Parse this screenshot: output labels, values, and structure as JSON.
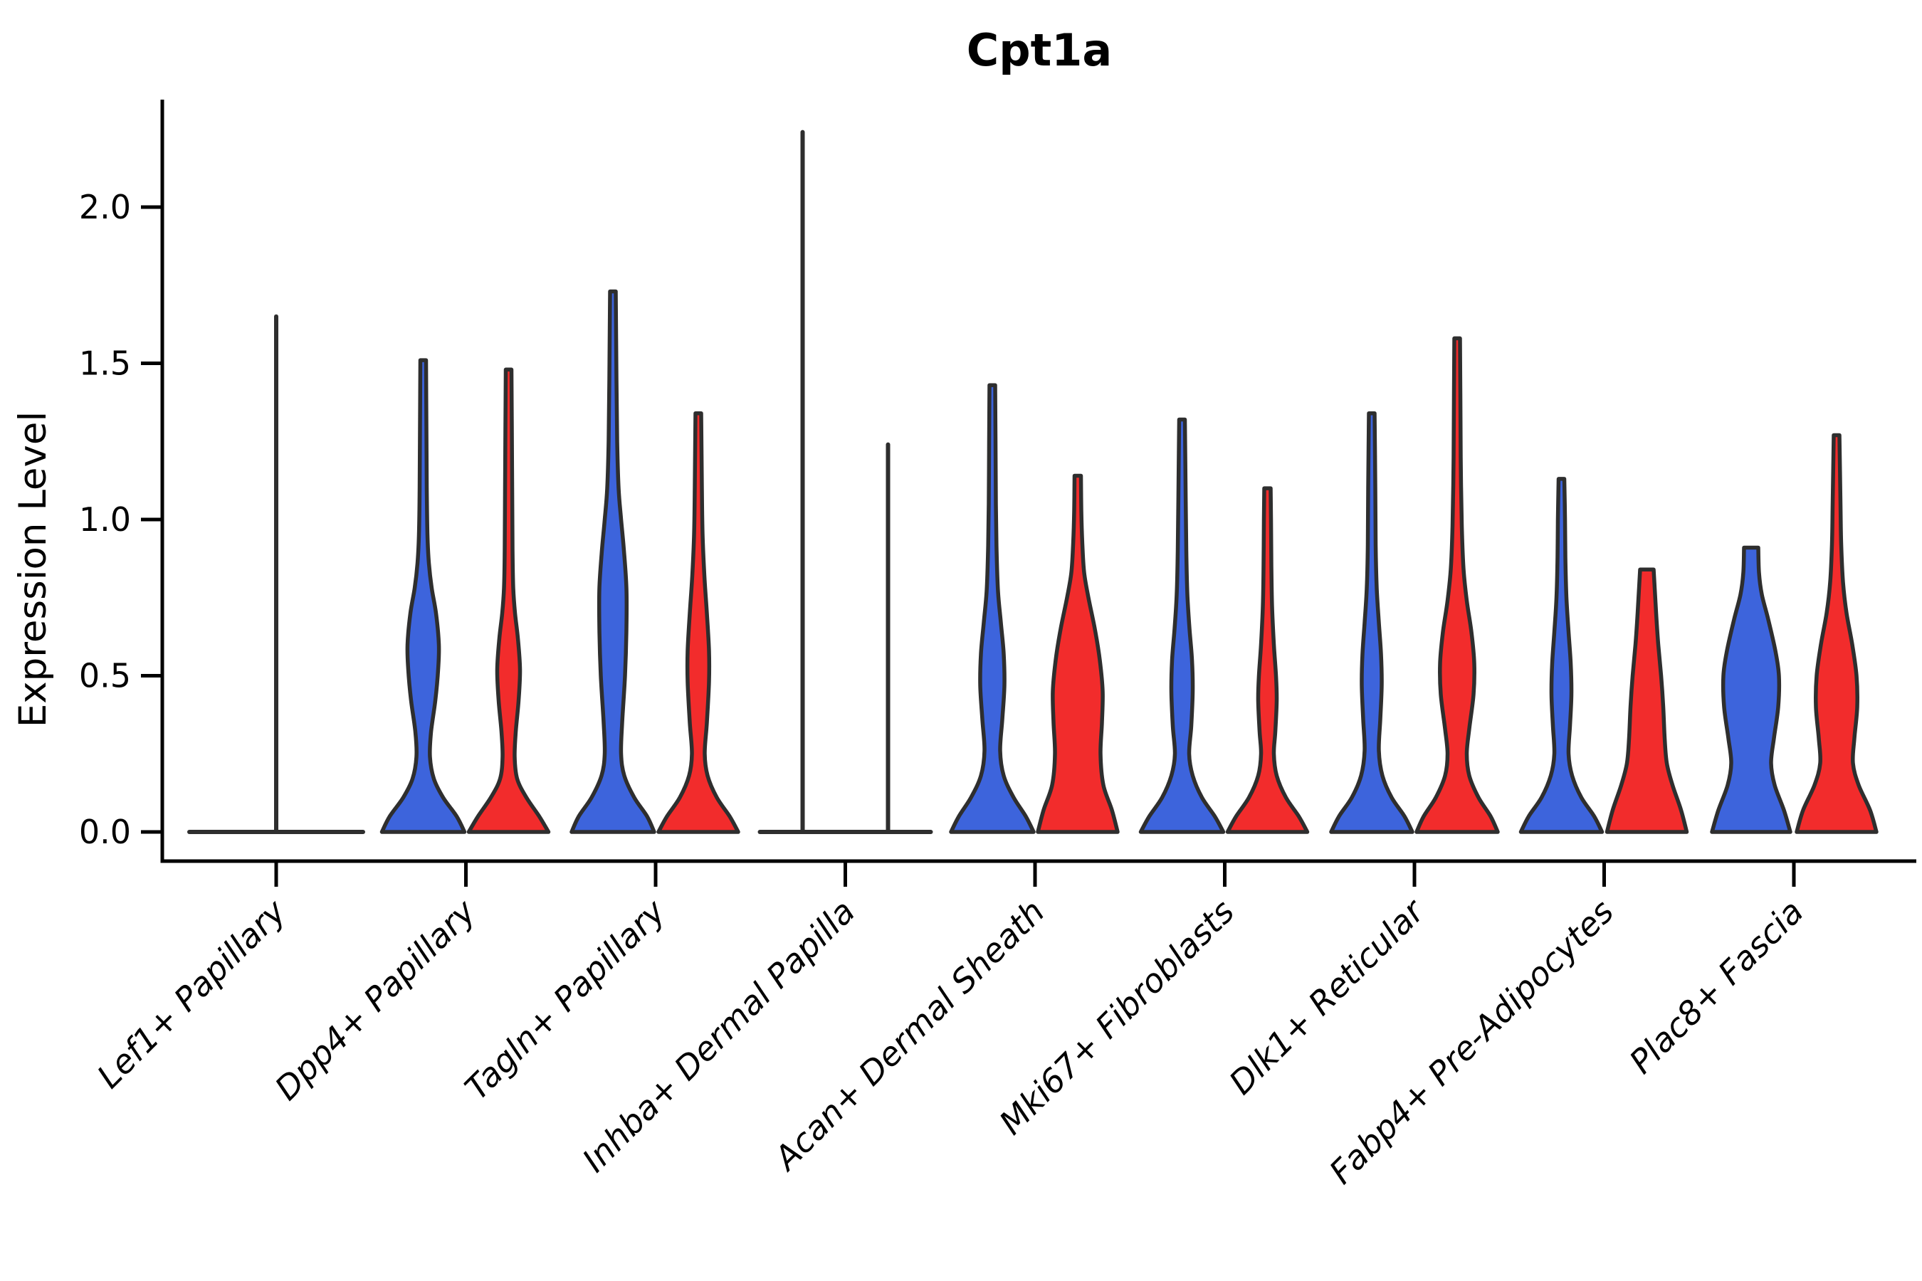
{
  "title": "Cpt1a",
  "y_axis": {
    "label": "Expression Level",
    "tick_labels": [
      "0.0",
      "0.5",
      "1.0",
      "1.5",
      "2.0"
    ],
    "tick_values": [
      0.0,
      0.5,
      1.0,
      1.5,
      2.0
    ]
  },
  "x_axis": {
    "categories": [
      "Lef1+ Papillary",
      "Dpp4+ Papillary",
      "Tagln+ Papillary",
      "Inhba+ Dermal Papilla",
      "Acan+ Dermal Sheath",
      "Mki67+ Fibroblasts",
      "Dlk1+ Reticular",
      "Fabp4+ Pre-Adipocytes",
      "Plac8+ Fascia"
    ]
  },
  "chart_data": {
    "type": "violin",
    "title": "Cpt1a",
    "ylabel": "Expression Level",
    "ylim": [
      -0.09,
      2.34
    ],
    "yticks": [
      0.0,
      0.5,
      1.0,
      1.5,
      2.0
    ],
    "grid": false,
    "legend": "none",
    "colors": {
      "blue": "#3D64DC",
      "red": "#F22C2C",
      "outline": "#2E2E2E"
    },
    "note": "Grouped violin plot; each category has a left (blue) and right (red) violin. Profiles are [expression_value, half_width_px] pairs from bottom (0) to the violin maximum. Flat violins are all-zero distributions drawn as a baseline with a single spike to max_value.",
    "categories": [
      "Lef1+ Papillary",
      "Dpp4+ Papillary",
      "Tagln+ Papillary",
      "Inhba+ Dermal Papilla",
      "Acan+ Dermal Sheath",
      "Mki67+ Fibroblasts",
      "Dlk1+ Reticular",
      "Fabp4+ Pre-Adipocytes",
      "Plac8+ Fascia"
    ],
    "max_by_series": {
      "blue": [
        1.65,
        1.51,
        1.73,
        2.24,
        1.43,
        1.32,
        1.34,
        1.13,
        0.91
      ],
      "red": [
        1.65,
        1.48,
        1.34,
        1.24,
        1.14,
        1.1,
        1.58,
        0.84,
        1.27
      ]
    },
    "groups": [
      {
        "category": "Lef1+ Papillary",
        "violins": [
          {
            "series": "none",
            "flat": true,
            "offset": 0,
            "half_width": 122,
            "max_value": 1.65
          }
        ]
      },
      {
        "category": "Dpp4+ Papillary",
        "violins": [
          {
            "series": "blue",
            "offset": -60,
            "max_value": 1.51,
            "profile": [
              [
                0,
                58
              ],
              [
                0.05,
                47
              ],
              [
                0.11,
                28
              ],
              [
                0.17,
                15
              ],
              [
                0.24,
                9.5
              ],
              [
                0.32,
                11
              ],
              [
                0.42,
                17
              ],
              [
                0.52,
                21
              ],
              [
                0.6,
                22
              ],
              [
                0.7,
                18
              ],
              [
                0.78,
                12
              ],
              [
                0.86,
                8
              ],
              [
                0.95,
                6
              ],
              [
                1.1,
                5
              ],
              [
                1.3,
                4.5
              ],
              [
                1.51,
                4
              ]
            ]
          },
          {
            "series": "red",
            "offset": 60,
            "max_value": 1.48,
            "profile": [
              [
                0,
                56
              ],
              [
                0.05,
                43
              ],
              [
                0.11,
                25
              ],
              [
                0.17,
                12
              ],
              [
                0.24,
                8.5
              ],
              [
                0.32,
                10
              ],
              [
                0.42,
                14
              ],
              [
                0.52,
                16
              ],
              [
                0.62,
                13
              ],
              [
                0.7,
                9
              ],
              [
                0.78,
                6.5
              ],
              [
                0.9,
                5.5
              ],
              [
                1.1,
                5
              ],
              [
                1.3,
                4.5
              ],
              [
                1.48,
                4
              ]
            ]
          }
        ]
      },
      {
        "category": "Tagln+ Papillary",
        "violins": [
          {
            "series": "blue",
            "offset": -60,
            "max_value": 1.73,
            "profile": [
              [
                0,
                58
              ],
              [
                0.05,
                48
              ],
              [
                0.11,
                30
              ],
              [
                0.18,
                16
              ],
              [
                0.25,
                11.5
              ],
              [
                0.35,
                13
              ],
              [
                0.5,
                17
              ],
              [
                0.65,
                19
              ],
              [
                0.78,
                19
              ],
              [
                0.9,
                15.5
              ],
              [
                1.0,
                11.5
              ],
              [
                1.1,
                8
              ],
              [
                1.25,
                6
              ],
              [
                1.45,
                5
              ],
              [
                1.73,
                4
              ]
            ]
          },
          {
            "series": "red",
            "offset": 60,
            "max_value": 1.34,
            "profile": [
              [
                0,
                56
              ],
              [
                0.05,
                44
              ],
              [
                0.11,
                26
              ],
              [
                0.18,
                13
              ],
              [
                0.25,
                9
              ],
              [
                0.35,
                12
              ],
              [
                0.48,
                15
              ],
              [
                0.58,
                15
              ],
              [
                0.7,
                12
              ],
              [
                0.82,
                8.5
              ],
              [
                0.95,
                6
              ],
              [
                1.1,
                5
              ],
              [
                1.34,
                4
              ]
            ]
          }
        ]
      },
      {
        "category": "Inhba+ Dermal Papilla",
        "violins": [
          {
            "series": "blue",
            "flat": true,
            "offset": -60,
            "half_width": 60,
            "max_value": 2.24
          },
          {
            "series": "red",
            "flat": true,
            "offset": 60,
            "half_width": 60,
            "max_value": 1.24
          }
        ]
      },
      {
        "category": "Acan+ Dermal Sheath",
        "violins": [
          {
            "series": "blue",
            "offset": -60,
            "max_value": 1.43,
            "profile": [
              [
                0,
                58
              ],
              [
                0.05,
                47
              ],
              [
                0.11,
                30
              ],
              [
                0.18,
                16
              ],
              [
                0.26,
                11
              ],
              [
                0.36,
                14
              ],
              [
                0.47,
                17
              ],
              [
                0.57,
                16
              ],
              [
                0.67,
                12
              ],
              [
                0.77,
                8
              ],
              [
                0.9,
                6
              ],
              [
                1.05,
                5
              ],
              [
                1.25,
                4.5
              ],
              [
                1.43,
                4
              ]
            ]
          },
          {
            "series": "red",
            "offset": 60,
            "max_value": 1.14,
            "profile": [
              [
                0,
                56
              ],
              [
                0.07,
                48
              ],
              [
                0.15,
                36
              ],
              [
                0.25,
                32
              ],
              [
                0.35,
                34
              ],
              [
                0.45,
                35
              ],
              [
                0.55,
                31
              ],
              [
                0.65,
                24
              ],
              [
                0.75,
                15
              ],
              [
                0.83,
                9
              ],
              [
                0.92,
                6.5
              ],
              [
                1.03,
                5
              ],
              [
                1.14,
                4.5
              ]
            ]
          }
        ]
      },
      {
        "category": "Mki67+ Fibroblasts",
        "violins": [
          {
            "series": "blue",
            "offset": -60,
            "max_value": 1.32,
            "profile": [
              [
                0,
                58
              ],
              [
                0.05,
                46
              ],
              [
                0.11,
                28
              ],
              [
                0.18,
                15
              ],
              [
                0.25,
                10
              ],
              [
                0.34,
                13
              ],
              [
                0.45,
                15
              ],
              [
                0.55,
                14
              ],
              [
                0.65,
                10.5
              ],
              [
                0.76,
                7.5
              ],
              [
                0.9,
                6
              ],
              [
                1.1,
                5
              ],
              [
                1.32,
                4
              ]
            ]
          },
          {
            "series": "red",
            "offset": 60,
            "max_value": 1.1,
            "profile": [
              [
                0,
                56
              ],
              [
                0.05,
                44
              ],
              [
                0.11,
                26
              ],
              [
                0.18,
                13
              ],
              [
                0.25,
                9
              ],
              [
                0.32,
                11
              ],
              [
                0.42,
                13
              ],
              [
                0.5,
                12
              ],
              [
                0.6,
                9
              ],
              [
                0.72,
                6.5
              ],
              [
                0.85,
                5.5
              ],
              [
                1.0,
                5
              ],
              [
                1.1,
                4.5
              ]
            ]
          }
        ]
      },
      {
        "category": "Dlk1+ Reticular",
        "violins": [
          {
            "series": "blue",
            "offset": -60,
            "max_value": 1.34,
            "profile": [
              [
                0,
                57
              ],
              [
                0.05,
                46
              ],
              [
                0.11,
                28
              ],
              [
                0.18,
                15
              ],
              [
                0.26,
                10
              ],
              [
                0.36,
                12
              ],
              [
                0.47,
                14
              ],
              [
                0.57,
                13
              ],
              [
                0.67,
                10
              ],
              [
                0.78,
                7
              ],
              [
                0.92,
                5.5
              ],
              [
                1.1,
                5
              ],
              [
                1.34,
                4
              ]
            ]
          },
          {
            "series": "red",
            "offset": 60,
            "max_value": 1.58,
            "profile": [
              [
                0,
                57
              ],
              [
                0.05,
                47
              ],
              [
                0.11,
                30
              ],
              [
                0.18,
                17
              ],
              [
                0.25,
                13.5
              ],
              [
                0.33,
                17
              ],
              [
                0.44,
                23
              ],
              [
                0.54,
                24
              ],
              [
                0.64,
                20
              ],
              [
                0.74,
                13.5
              ],
              [
                0.84,
                9
              ],
              [
                0.98,
                6.5
              ],
              [
                1.2,
                5
              ],
              [
                1.4,
                4.5
              ],
              [
                1.58,
                4
              ]
            ]
          }
        ]
      },
      {
        "category": "Fabp4+ Pre-Adipocytes",
        "violins": [
          {
            "series": "blue",
            "offset": -60,
            "max_value": 1.13,
            "profile": [
              [
                0,
                57
              ],
              [
                0.05,
                46
              ],
              [
                0.11,
                28
              ],
              [
                0.18,
                15
              ],
              [
                0.25,
                10
              ],
              [
                0.34,
                12
              ],
              [
                0.44,
                14
              ],
              [
                0.54,
                13
              ],
              [
                0.64,
                10
              ],
              [
                0.75,
                7
              ],
              [
                0.88,
                5.5
              ],
              [
                1.0,
                5
              ],
              [
                1.13,
                4
              ]
            ]
          },
          {
            "series": "red",
            "offset": 60,
            "max_value": 0.84,
            "profile": [
              [
                0,
                56
              ],
              [
                0.07,
                48
              ],
              [
                0.15,
                36
              ],
              [
                0.22,
                28
              ],
              [
                0.3,
                25
              ],
              [
                0.4,
                23
              ],
              [
                0.5,
                20
              ],
              [
                0.6,
                16
              ],
              [
                0.7,
                13
              ],
              [
                0.78,
                11
              ],
              [
                0.84,
                9.5
              ]
            ]
          }
        ]
      },
      {
        "category": "Plac8+ Fascia",
        "violins": [
          {
            "series": "blue",
            "offset": -60,
            "max_value": 0.91,
            "profile": [
              [
                0,
                55
              ],
              [
                0.07,
                46
              ],
              [
                0.15,
                33
              ],
              [
                0.22,
                28
              ],
              [
                0.3,
                32
              ],
              [
                0.4,
                38
              ],
              [
                0.5,
                39
              ],
              [
                0.58,
                34
              ],
              [
                0.68,
                24
              ],
              [
                0.76,
                15
              ],
              [
                0.83,
                11
              ],
              [
                0.91,
                10
              ]
            ]
          },
          {
            "series": "red",
            "offset": 60,
            "max_value": 1.27,
            "profile": [
              [
                0,
                56
              ],
              [
                0.07,
                47
              ],
              [
                0.15,
                31
              ],
              [
                0.22,
                23
              ],
              [
                0.3,
                25
              ],
              [
                0.4,
                29
              ],
              [
                0.5,
                28
              ],
              [
                0.6,
                22
              ],
              [
                0.7,
                14
              ],
              [
                0.8,
                9
              ],
              [
                0.92,
                6.5
              ],
              [
                1.05,
                5.5
              ],
              [
                1.27,
                4
              ]
            ]
          }
        ]
      }
    ]
  }
}
